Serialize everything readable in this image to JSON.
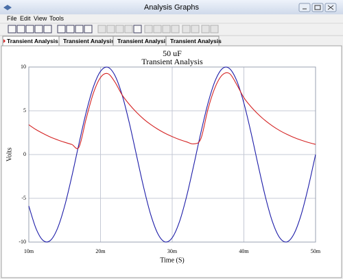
{
  "window": {
    "title": "Analysis Graphs",
    "menu": [
      "File",
      "Edit",
      "View",
      "Tools"
    ],
    "tabs": [
      "Transient Analysis",
      "Transient Analysis",
      "Transient Analysis",
      "Transient Analysis"
    ]
  },
  "chart_data": {
    "type": "line",
    "title": "50 uF",
    "subtitle": "Transient Analysis",
    "x_label": "Time (S)",
    "y_label": "Volts",
    "x": [
      0.01,
      0.011,
      0.012,
      0.013,
      0.014,
      0.015,
      0.016,
      0.017,
      0.018,
      0.019,
      0.02,
      0.021,
      0.022,
      0.023,
      0.024,
      0.025,
      0.026,
      0.027,
      0.028,
      0.029,
      0.03,
      0.031,
      0.032,
      0.033,
      0.034,
      0.035,
      0.036,
      0.037,
      0.038,
      0.039,
      0.04,
      0.041,
      0.042,
      0.043,
      0.044,
      0.045,
      0.046,
      0.047,
      0.048,
      0.049,
      0.05
    ],
    "series": [
      {
        "color": "#1c1ca8",
        "values": [
          -5.88,
          -8.44,
          -9.82,
          -9.82,
          -8.44,
          -5.88,
          -2.49,
          1.25,
          4.82,
          7.71,
          9.51,
          9.98,
          9.05,
          6.85,
          3.68,
          0,
          -3.68,
          -6.85,
          -9.05,
          -9.98,
          -9.51,
          -7.71,
          -4.82,
          -1.25,
          2.49,
          5.88,
          8.44,
          9.82,
          9.82,
          8.44,
          5.88,
          2.49,
          -1.25,
          -4.82,
          -7.71,
          -9.51,
          -9.98,
          -9.05,
          -6.85,
          -3.68,
          0
        ]
      },
      {
        "color": "#d42222",
        "values": [
          3.4,
          2.85,
          2.4,
          2.0,
          1.68,
          1.4,
          1.15,
          0.85,
          4.1,
          7.0,
          8.8,
          9.25,
          8.3,
          6.83,
          5.75,
          4.84,
          4.07,
          3.43,
          2.89,
          2.43,
          2.05,
          1.72,
          1.45,
          1.22,
          1.8,
          5.2,
          7.7,
          9.1,
          9.25,
          8.0,
          6.5,
          5.46,
          4.6,
          3.87,
          3.26,
          2.74,
          2.31,
          1.94,
          1.64,
          1.38,
          1.16
        ]
      }
    ],
    "xlim": [
      0.01,
      0.05
    ],
    "xticks": [
      {
        "value": 0.01,
        "label": "10m"
      },
      {
        "value": 0.02,
        "label": "20m"
      },
      {
        "value": 0.03,
        "label": "30m"
      },
      {
        "value": 0.04,
        "label": "40m"
      },
      {
        "value": 0.05,
        "label": "50m"
      }
    ],
    "ylim": [
      -10,
      10
    ],
    "yticks": [
      10,
      5,
      0,
      -5,
      -10
    ],
    "grid": true
  }
}
